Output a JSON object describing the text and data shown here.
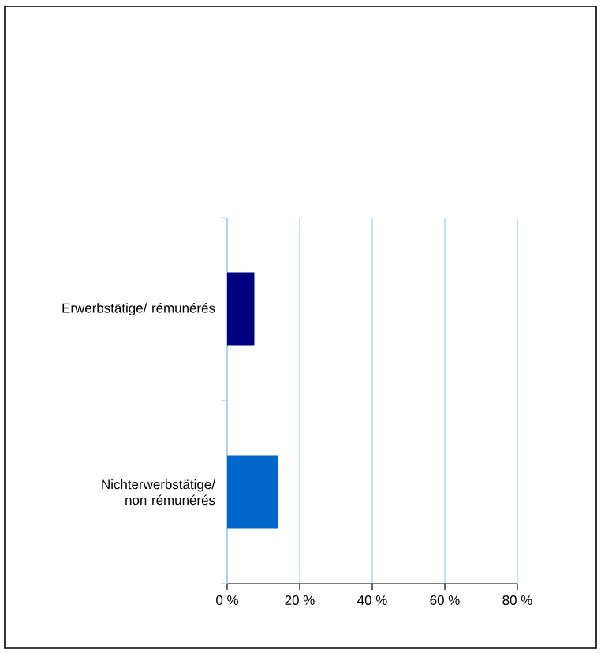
{
  "chart_data": {
    "type": "bar",
    "orientation": "horizontal",
    "categories": [
      "Erwerbstätige/ rémunérés",
      "Nichterwerbstätige/ non rémunérés"
    ],
    "values": [
      7.5,
      14
    ],
    "colors": [
      "#000080",
      "#0066cc"
    ],
    "xlim": [
      0,
      80
    ],
    "xticks": [
      {
        "value": 0,
        "label": "0 %"
      },
      {
        "value": 20,
        "label": "20 %"
      },
      {
        "value": 40,
        "label": "40 %"
      },
      {
        "value": 60,
        "label": "60 %"
      },
      {
        "value": 80,
        "label": "80 %"
      }
    ],
    "grid": "x"
  }
}
